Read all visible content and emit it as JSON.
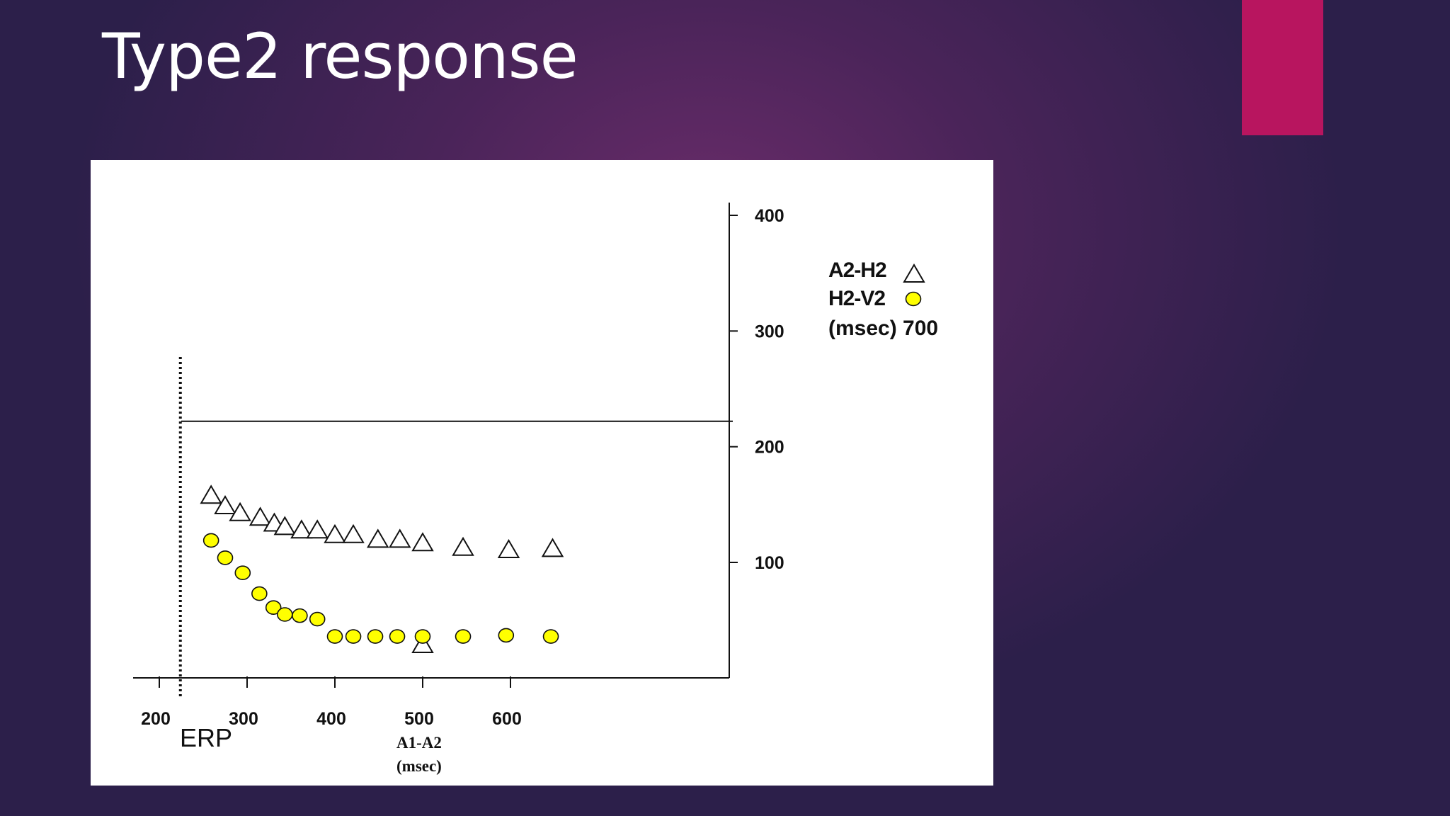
{
  "slide": {
    "title": "Type2 response",
    "accent_color": "#b8155f"
  },
  "chart_data": {
    "type": "scatter",
    "x_axis": {
      "ticks": [
        200,
        300,
        400,
        500,
        600
      ],
      "xlim": [
        180,
        650
      ],
      "label_lines": [
        "A1-A2",
        "(msec)"
      ]
    },
    "y_axis": {
      "ticks": [
        100,
        200,
        300,
        400
      ],
      "ylim": [
        0,
        400
      ],
      "position": "right"
    },
    "erp_marker": {
      "label": "ERP",
      "x": 224
    },
    "reference_line_y": 222,
    "legend": {
      "placement": "top-right",
      "entries": [
        {
          "label": "A2-H2",
          "marker": "triangle"
        },
        {
          "label": "H2-V2",
          "marker": "circle"
        }
      ],
      "unit_line": "(msec)   700"
    },
    "series": [
      {
        "name": "A2-H2",
        "marker": "triangle",
        "color": "#ffffff",
        "x": [
          259,
          275,
          292,
          315,
          331,
          343,
          362,
          380,
          400,
          421,
          449,
          474,
          500,
          546,
          598,
          648,
          500
        ],
        "y": [
          158,
          149,
          143,
          139,
          134,
          131,
          128,
          128,
          124,
          124,
          120,
          120,
          117,
          113,
          111,
          112,
          29
        ]
      },
      {
        "name": "H2-V2",
        "marker": "circle",
        "color": "#ffff00",
        "x": [
          259,
          275,
          295,
          314,
          330,
          343,
          360,
          380,
          400,
          421,
          446,
          471,
          500,
          546,
          595,
          646
        ],
        "y": [
          119,
          104,
          91,
          73,
          61,
          55,
          54,
          51,
          36,
          36,
          36,
          36,
          36,
          36,
          37,
          36
        ]
      }
    ]
  }
}
